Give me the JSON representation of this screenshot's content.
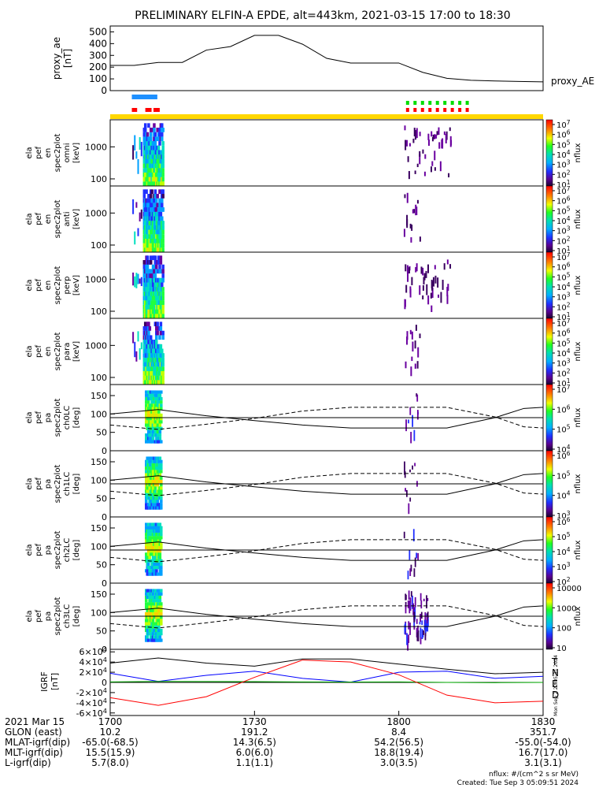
{
  "title": "PRELIMINARY ELFIN-A EPDE, alt=443km, 2021-03-15 17:00 to 18:30",
  "colors": {
    "spin_bar_blue": "#1e90ff",
    "fgm_red": "#ff0000",
    "epd_green": "#00dd00",
    "sci_zone_yellow": "#ffd700",
    "igrf_T": "#000000",
    "igrf_N": "#0000ff",
    "igrf_E": "#00aa00",
    "igrf_D": "#ff0000"
  },
  "chart_data": [
    {
      "type": "line",
      "panel": "proxy_ae",
      "ylabel": "proxy_ae [nT]",
      "legend": [
        "proxy_AE"
      ],
      "ylim": [
        0,
        550
      ],
      "yticks": [
        "500",
        "400",
        "300",
        "200",
        "100",
        "0"
      ],
      "x_minutes": [
        0,
        5,
        10,
        15,
        20,
        25,
        30,
        35,
        40,
        45,
        50,
        55,
        60,
        65,
        70,
        75,
        80,
        85,
        90
      ],
      "values": [
        215,
        215,
        240,
        240,
        345,
        375,
        470,
        470,
        395,
        275,
        235,
        235,
        235,
        155,
        105,
        88,
        82,
        78,
        75
      ]
    },
    {
      "type": "heatmap",
      "panel": "ela_pef_en_spec2plot_omni",
      "ylabel": "ela pef en spec2plot omni [keV]",
      "yscale": "log",
      "ylim": [
        60,
        7000
      ],
      "yticks": [
        "1000",
        "100"
      ],
      "zlabel": "nflux",
      "zticks": [
        "10^7",
        "10^6",
        "10^5",
        "10^4",
        "10^3",
        "10^2",
        "10^1"
      ]
    },
    {
      "type": "heatmap",
      "panel": "ela_pef_en_spec2plot_anti",
      "ylabel": "ela pef en spec2plot anti [keV]",
      "yscale": "log",
      "ylim": [
        60,
        7000
      ],
      "yticks": [
        "1000",
        "100"
      ],
      "zlabel": "nflux",
      "zticks": [
        "10^7",
        "10^6",
        "10^5",
        "10^4",
        "10^3",
        "10^2",
        "10^1"
      ]
    },
    {
      "type": "heatmap",
      "panel": "ela_pef_en_spec2plot_perp",
      "ylabel": "ela pef en spec2plot perp [keV]",
      "yscale": "log",
      "ylim": [
        60,
        7000
      ],
      "yticks": [
        "1000",
        "100"
      ],
      "zlabel": "nflux",
      "zticks": [
        "10^7",
        "10^6",
        "10^5",
        "10^4",
        "10^3",
        "10^2",
        "10^1"
      ]
    },
    {
      "type": "heatmap",
      "panel": "ela_pef_en_spec2plot_para",
      "ylabel": "ela pef en spec2plot para [keV]",
      "yscale": "log",
      "ylim": [
        60,
        7000
      ],
      "yticks": [
        "1000",
        "100"
      ],
      "zlabel": "nflux",
      "zticks": [
        "10^7",
        "10^6",
        "10^5",
        "10^4",
        "10^3",
        "10^2",
        "10^1"
      ]
    },
    {
      "type": "heatmap",
      "panel": "ela_pef_pa_spec2plot_ch0LC",
      "ylabel": "ela pef pa spec2plot ch0LC [deg]",
      "ylim": [
        0,
        180
      ],
      "yticks": [
        "150",
        "100",
        "50",
        "0"
      ],
      "zlabel": "nflux",
      "zticks": [
        "10^7",
        "10^6",
        "10^5",
        "10^4"
      ]
    },
    {
      "type": "heatmap",
      "panel": "ela_pef_pa_spec2plot_ch1LC",
      "ylabel": "ela pef pa spec2plot ch1LC [deg]",
      "ylim": [
        0,
        180
      ],
      "yticks": [
        "150",
        "100",
        "50",
        "0"
      ],
      "zlabel": "nflux",
      "zticks": [
        "10^6",
        "10^5",
        "10^4",
        "10^3"
      ]
    },
    {
      "type": "heatmap",
      "panel": "ela_pef_pa_spec2plot_ch2LC",
      "ylabel": "ela pef pa spec2plot ch2LC [deg]",
      "ylim": [
        0,
        180
      ],
      "yticks": [
        "150",
        "100",
        "50",
        "0"
      ],
      "zlabel": "nflux",
      "zticks": [
        "10^6",
        "10^5",
        "10^4",
        "10^3",
        "10^2"
      ]
    },
    {
      "type": "heatmap",
      "panel": "ela_pef_pa_spec2plot_ch3LC",
      "ylabel": "ela pef pa spec2plot ch3LC [deg]",
      "ylim": [
        0,
        180
      ],
      "yticks": [
        "150",
        "100",
        "50",
        "0"
      ],
      "zlabel": "nflux",
      "zticks": [
        "10000",
        "1000",
        "100",
        "10"
      ]
    },
    {
      "type": "line",
      "panel": "IGRF",
      "ylabel": "IGRF [nT]",
      "ylim": [
        -65000,
        65000
      ],
      "yticks": [
        "6×10^4",
        "4×10^4",
        "2×10^4",
        "0",
        "-2×10^4",
        "-4×10^4",
        "-6×10^4"
      ],
      "legend": [
        "T",
        "N",
        "E",
        "D"
      ],
      "x_minutes": [
        0,
        10,
        20,
        30,
        40,
        50,
        60,
        70,
        80,
        90
      ],
      "series": [
        {
          "name": "T",
          "values": [
            38000,
            48000,
            38000,
            32000,
            46000,
            46000,
            36000,
            26000,
            17000,
            20000
          ]
        },
        {
          "name": "N",
          "values": [
            18000,
            2000,
            14000,
            22000,
            8000,
            500,
            20000,
            22000,
            8000,
            12000
          ]
        },
        {
          "name": "E",
          "values": [
            1000,
            2000,
            1800,
            1500,
            1000,
            800,
            1000,
            0,
            -500,
            0
          ]
        },
        {
          "name": "D",
          "values": [
            -30000,
            -45000,
            -28000,
            10000,
            44000,
            40000,
            15000,
            -25000,
            -40000,
            -37000
          ]
        }
      ]
    }
  ],
  "side_label": "Mon Sep  2 22:05:31 2024",
  "ephemeris": {
    "labels": [
      "2021 Mar 15",
      "GLON (east)",
      "MLAT-igrf(dip)",
      "MLT-igrf(dip)",
      "L-igrf(dip)"
    ],
    "time_ticks": [
      "1700",
      "1730",
      "1800",
      "1830"
    ],
    "columns": [
      [
        "",
        "10.2",
        "-65.0(-68.5)",
        "15.5(15.9)",
        "5.7(8.0)"
      ],
      [
        "",
        "191.2",
        "14.3(6.5)",
        "6.0(6.0)",
        "1.1(1.1)"
      ],
      [
        "",
        "8.4",
        "54.2(56.5)",
        "18.8(19.4)",
        "3.0(3.5)"
      ],
      [
        "",
        "351.7",
        "-55.0(-54.0)",
        "16.7(17.0)",
        "3.1(3.1)"
      ]
    ]
  },
  "footer": {
    "units": "nflux: #/(cm^2 s sr MeV)",
    "created": "Created: Tue Sep  3 05:09:51 2024"
  }
}
